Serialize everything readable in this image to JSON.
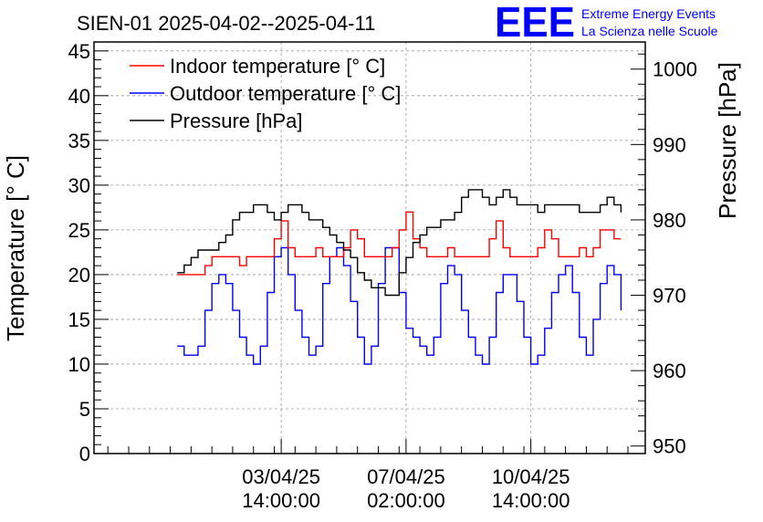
{
  "chart_data": {
    "type": "line",
    "title": "SIEN-01 2025-04-02--2025-04-11",
    "ylabel_left": "Temperature [° C]",
    "ylabel_right": "Pressure [hPa]",
    "ylim_left": [
      0,
      46
    ],
    "ylim_right": [
      949,
      1003.6
    ],
    "xlim_hours": [
      -40,
      119
    ],
    "yticks_left": [
      "0",
      "5",
      "10",
      "15",
      "20",
      "25",
      "30",
      "35",
      "40",
      "45"
    ],
    "yticks_right": [
      "950",
      "960",
      "970",
      "980",
      "990",
      "1000"
    ],
    "xticks": [
      {
        "hour": 14,
        "date": "03/04/25",
        "time": "14:00:00"
      },
      {
        "hour": 50,
        "date": "07/04/25",
        "time": "02:00:00"
      },
      {
        "hour": 86,
        "date": "10/04/25",
        "time": "14:00:00"
      }
    ],
    "grid": true,
    "legend_position": "top-left",
    "series": [
      {
        "name": "Indoor temperature [° C]",
        "axis": "left",
        "color": "#ff0000",
        "x": [
          -16,
          -12,
          -10,
          -8,
          -6,
          -4,
          -2,
          0,
          2,
          4,
          6,
          7,
          8,
          10,
          12,
          14,
          16,
          18,
          20,
          22,
          24,
          26,
          28,
          30,
          32,
          34,
          36,
          38,
          40,
          42,
          44,
          46,
          48,
          50,
          52,
          54,
          56,
          58,
          60,
          62,
          64,
          66,
          68,
          70,
          72,
          74,
          76,
          78,
          80,
          82,
          84,
          86,
          88,
          90,
          92,
          94,
          96,
          98,
          100,
          102,
          104,
          106,
          110,
          112
        ],
        "y": [
          20,
          20,
          20,
          21,
          22,
          22,
          22,
          22,
          21,
          22,
          22,
          22,
          22,
          22,
          24,
          26,
          23,
          22,
          22,
          22,
          23,
          22,
          22,
          22,
          23,
          25,
          24,
          22,
          22,
          22,
          22,
          23,
          25,
          27,
          24,
          23,
          22,
          22,
          22,
          23,
          22,
          22,
          22,
          22,
          22,
          24,
          26,
          23,
          22,
          22,
          22,
          22,
          23,
          25,
          24,
          22,
          22,
          22,
          23,
          22,
          23,
          25,
          24,
          24
        ]
      },
      {
        "name": "Outdoor temperature [° C]",
        "axis": "left",
        "color": "#0000ff",
        "x": [
          -16,
          -14,
          -12,
          -10,
          -8,
          -6,
          -4,
          -2,
          0,
          2,
          4,
          6,
          8,
          10,
          12,
          14,
          16,
          18,
          20,
          22,
          24,
          26,
          28,
          30,
          32,
          34,
          36,
          38,
          40,
          42,
          44,
          46,
          48,
          50,
          52,
          54,
          56,
          58,
          60,
          62,
          64,
          66,
          68,
          70,
          72,
          74,
          76,
          78,
          80,
          82,
          84,
          86,
          88,
          90,
          92,
          94,
          96,
          98,
          100,
          102,
          104,
          106,
          108,
          110,
          112
        ],
        "y": [
          12,
          11,
          11,
          12,
          16,
          19,
          20,
          19,
          16,
          13,
          11,
          10,
          12,
          18,
          22,
          23,
          20,
          16,
          13,
          11,
          12,
          19,
          22,
          23,
          21,
          17,
          13,
          10,
          12,
          19,
          23,
          23,
          18,
          14,
          13,
          12,
          11,
          13,
          19,
          21,
          20,
          16,
          13,
          11,
          10,
          13,
          18,
          20,
          20,
          17,
          13,
          10,
          11,
          14,
          18,
          20,
          21,
          18,
          13,
          11,
          15,
          19,
          21,
          20,
          16
        ]
      },
      {
        "name": "Pressure [hPa]",
        "axis": "right",
        "color": "#000000",
        "x": [
          -16,
          -14,
          -12,
          -10,
          -8,
          -6,
          -4,
          -2,
          0,
          2,
          4,
          6,
          8,
          10,
          12,
          14,
          16,
          18,
          20,
          22,
          24,
          26,
          28,
          30,
          32,
          34,
          36,
          38,
          40,
          42,
          44,
          46,
          48,
          50,
          52,
          54,
          56,
          58,
          60,
          62,
          64,
          66,
          68,
          70,
          72,
          74,
          76,
          78,
          80,
          82,
          84,
          86,
          88,
          90,
          92,
          94,
          96,
          98,
          100,
          102,
          104,
          106,
          108,
          110,
          112
        ],
        "y": [
          973,
          974,
          975,
          976,
          976,
          976,
          977,
          978,
          980,
          981,
          981,
          982,
          982,
          981,
          980,
          981,
          982,
          982,
          981,
          980,
          980,
          979,
          978,
          977,
          976,
          975,
          973,
          972,
          971,
          971,
          970,
          970,
          973,
          975,
          977,
          978,
          979,
          979,
          980,
          980,
          981,
          983,
          984,
          984,
          983,
          982,
          983,
          984,
          983,
          982,
          982,
          982,
          981,
          982,
          982,
          982,
          982,
          982,
          981,
          981,
          981,
          982,
          983,
          982,
          981
        ]
      }
    ]
  },
  "logo": {
    "mark": "EEE",
    "line1": "Extreme Energy Events",
    "line2": "La Scienza nelle Scuole"
  },
  "colors": {
    "indoor": "#ff0000",
    "outdoor": "#0000ff",
    "pressure": "#000000",
    "logo": "#0000ff"
  }
}
